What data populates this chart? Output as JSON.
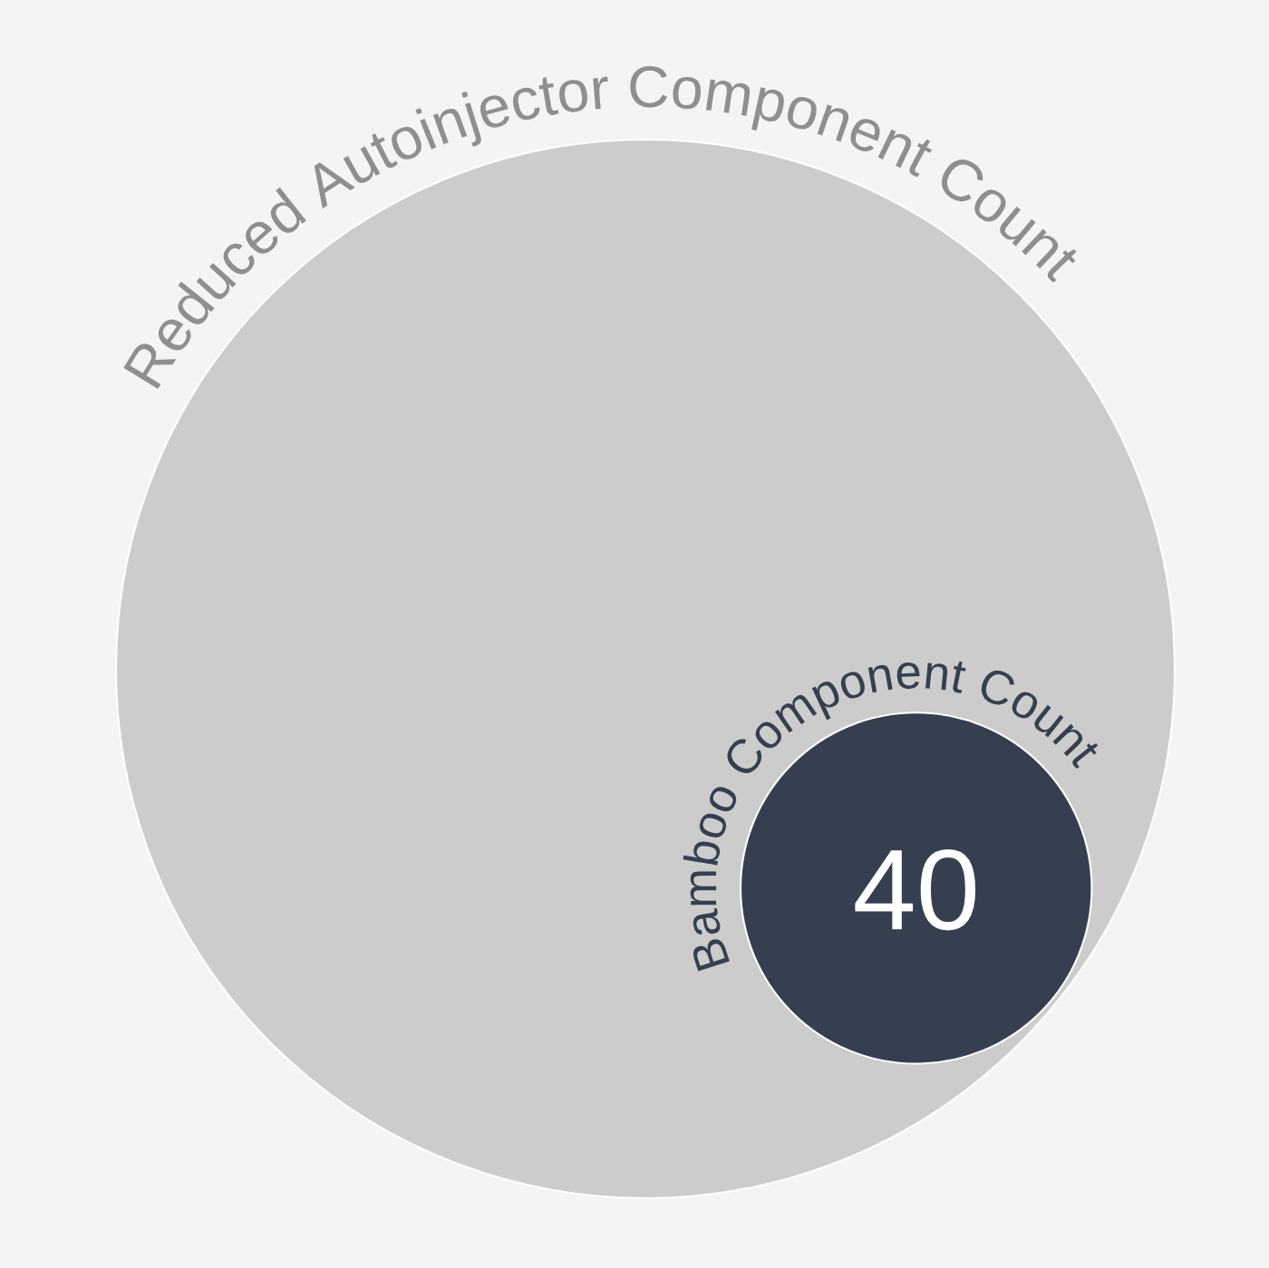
{
  "chart_data": {
    "type": "other",
    "categories": [
      "Reduced Autoinjector Component Count",
      "Bamboo Component Count"
    ],
    "values": [
      null,
      40
    ],
    "data_labels": true,
    "colors": [
      "#cccccc",
      "#353f4f"
    ]
  }
}
